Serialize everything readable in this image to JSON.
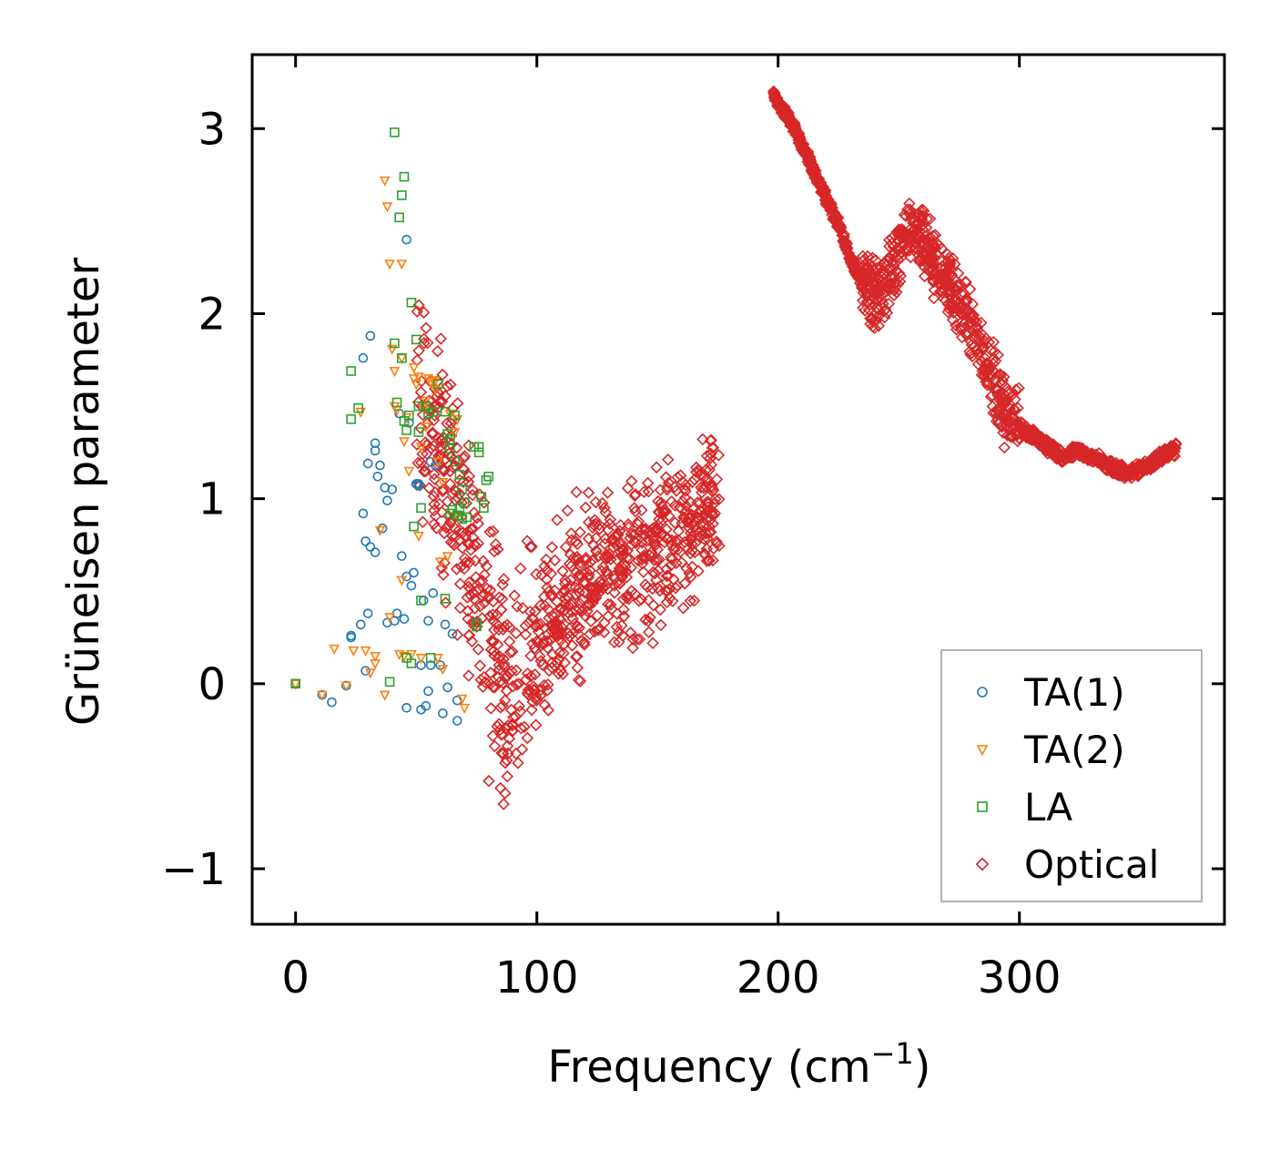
{
  "chart_data": {
    "type": "scatter",
    "title": "",
    "xlabel": "Frequency (cm",
    "xlabel_sup": "−1",
    "xlabel_end": ")",
    "ylabel": "Grüneisen parameter",
    "xlim": [
      -18,
      385
    ],
    "ylim": [
      -1.3,
      3.4
    ],
    "xticks": [
      0,
      100,
      200,
      300
    ],
    "yticks": [
      -1,
      0,
      1,
      2,
      3
    ],
    "xtick_labels": [
      "0",
      "100",
      "200",
      "300"
    ],
    "ytick_labels": [
      "−1",
      "0",
      "1",
      "2",
      "3"
    ],
    "legend_position": "lower-right",
    "series": [
      {
        "name": "TA(1)",
        "marker": "circle",
        "color": "#1f77b4",
        "points": [
          [
            0,
            0
          ],
          [
            11,
            -0.06
          ],
          [
            15,
            -0.1
          ],
          [
            21,
            -0.01
          ],
          [
            23,
            0.25
          ],
          [
            23,
            0.26
          ],
          [
            27,
            0.32
          ],
          [
            28,
            1.76
          ],
          [
            28,
            0.92
          ],
          [
            29,
            0.77
          ],
          [
            29,
            0.07
          ],
          [
            30,
            1.19
          ],
          [
            30,
            0.38
          ],
          [
            31,
            1.88
          ],
          [
            31,
            0.74
          ],
          [
            33,
            1.3
          ],
          [
            33,
            1.26
          ],
          [
            33,
            0.71
          ],
          [
            34,
            1.12
          ],
          [
            35,
            1.18
          ],
          [
            36,
            0.84
          ],
          [
            37,
            1.06
          ],
          [
            38,
            0.99
          ],
          [
            38,
            0.33
          ],
          [
            40,
            1.05
          ],
          [
            41,
            0.34
          ],
          [
            42,
            0.38
          ],
          [
            43,
            1.46
          ],
          [
            44,
            0.69
          ],
          [
            45,
            0.35
          ],
          [
            46,
            2.4
          ],
          [
            46,
            0.58
          ],
          [
            46,
            -0.13
          ],
          [
            47,
            1.41
          ],
          [
            48,
            0.53
          ],
          [
            49,
            0.6
          ],
          [
            50,
            1.08
          ],
          [
            51,
            1.08
          ],
          [
            51,
            1.07
          ],
          [
            52,
            -0.14
          ],
          [
            52,
            0.1
          ],
          [
            53,
            0.45
          ],
          [
            54,
            -0.12
          ],
          [
            55,
            -0.04
          ],
          [
            55,
            0.34
          ],
          [
            56,
            1.2
          ],
          [
            56,
            0.1
          ],
          [
            57,
            0.49
          ],
          [
            58,
            1.18
          ],
          [
            60,
            0.1
          ],
          [
            61,
            -0.16
          ],
          [
            62,
            0.32
          ],
          [
            63,
            -0.02
          ],
          [
            65,
            0.27
          ],
          [
            67,
            -0.2
          ],
          [
            67,
            -0.09
          ]
        ]
      },
      {
        "name": "TA(2)",
        "marker": "triangle-down",
        "color": "#ff7f0e",
        "points": [
          [
            0,
            0
          ],
          [
            11,
            -0.06
          ],
          [
            16,
            0.19
          ],
          [
            21,
            -0.01
          ],
          [
            24,
            0.18
          ],
          [
            27,
            1.47
          ],
          [
            29,
            0.18
          ],
          [
            31,
            0.06
          ],
          [
            33,
            0.15
          ],
          [
            33,
            0.11
          ],
          [
            35,
            0.83
          ],
          [
            37,
            2.72
          ],
          [
            37,
            -0.06
          ],
          [
            38,
            2.58
          ],
          [
            39,
            2.27
          ],
          [
            39,
            0.36
          ],
          [
            40,
            1.81
          ],
          [
            41,
            1.69
          ],
          [
            41,
            1.5
          ],
          [
            42,
            1.48
          ],
          [
            43,
            0.16
          ],
          [
            44,
            2.27
          ],
          [
            44,
            1.76
          ],
          [
            44,
            0.56
          ],
          [
            45,
            1.31
          ],
          [
            45,
            0.15
          ],
          [
            46,
            1.44
          ],
          [
            47,
            1.15
          ],
          [
            48,
            0.16
          ],
          [
            49,
            1.71
          ],
          [
            49,
            1.65
          ],
          [
            50,
            1.62
          ],
          [
            51,
            1.66
          ],
          [
            51,
            0.8
          ],
          [
            52,
            1.28
          ],
          [
            52,
            0.14
          ],
          [
            53,
            1.49
          ],
          [
            54,
            1.53
          ],
          [
            54,
            1.39
          ],
          [
            55,
            1.65
          ],
          [
            56,
            1.63
          ],
          [
            57,
            1.64
          ],
          [
            58,
            1.64
          ],
          [
            58,
            1.59
          ],
          [
            59,
            1.2
          ],
          [
            59,
            0.14
          ],
          [
            60,
            0.66
          ],
          [
            61,
            0.08
          ],
          [
            61,
            1.09
          ],
          [
            63,
            0.69
          ],
          [
            64,
            1.46
          ],
          [
            66,
            1.36
          ],
          [
            67,
            1.43
          ],
          [
            67,
            0.91
          ],
          [
            69,
            -0.08
          ],
          [
            70,
            -0.13
          ]
        ]
      },
      {
        "name": "LA",
        "marker": "square",
        "color": "#2ca02c",
        "points": [
          [
            0,
            0
          ],
          [
            23,
            1.69
          ],
          [
            23,
            1.43
          ],
          [
            26,
            1.49
          ],
          [
            39,
            0.01
          ],
          [
            41,
            2.98
          ],
          [
            41,
            1.84
          ],
          [
            42,
            1.52
          ],
          [
            43,
            2.52
          ],
          [
            44,
            2.64
          ],
          [
            44,
            1.76
          ],
          [
            45,
            2.74
          ],
          [
            45,
            1.42
          ],
          [
            46,
            0.14
          ],
          [
            46,
            1.37
          ],
          [
            47,
            1.45
          ],
          [
            48,
            2.06
          ],
          [
            48,
            0.11
          ],
          [
            49,
            0.85
          ],
          [
            50,
            1.86
          ],
          [
            51,
            1.5
          ],
          [
            51,
            1.36
          ],
          [
            52,
            0.95
          ],
          [
            52,
            0.45
          ],
          [
            54,
            1.5
          ],
          [
            55,
            1.46
          ],
          [
            56,
            0.14
          ],
          [
            57,
            1.47
          ],
          [
            59,
            1.62
          ],
          [
            62,
            1.47
          ],
          [
            62,
            0.46
          ],
          [
            63,
            1.35
          ],
          [
            64,
            1.32
          ],
          [
            64,
            1.27
          ],
          [
            64,
            0.92
          ],
          [
            65,
            0.94
          ],
          [
            66,
            1.2
          ],
          [
            66,
            1.45
          ],
          [
            67,
            0.91
          ],
          [
            68,
            0.95
          ],
          [
            68,
            1.13
          ],
          [
            69,
            1.05
          ],
          [
            69,
            0.89
          ],
          [
            70,
            0.98
          ],
          [
            71,
            0.9
          ],
          [
            74,
            1.28
          ],
          [
            75,
            0.31
          ],
          [
            75,
            0.33
          ],
          [
            76,
            1.25
          ],
          [
            76,
            1.28
          ],
          [
            77,
            1.01
          ],
          [
            78,
            0.95
          ],
          [
            79,
            1.1
          ],
          [
            80,
            1.12
          ]
        ]
      },
      {
        "name": "Optical",
        "marker": "diamond",
        "color": "#d62728",
        "region1": {
          "x_from": 50,
          "x_to": 176
        },
        "region2_points": [
          [
            198,
            3.18
          ],
          [
            205,
            3.05
          ],
          [
            212,
            2.85
          ],
          [
            218,
            2.68
          ],
          [
            225,
            2.48
          ],
          [
            230,
            2.3
          ],
          [
            234,
            2.18
          ],
          [
            240,
            2.1
          ],
          [
            247,
            2.2
          ],
          [
            252,
            2.42
          ],
          [
            258,
            2.4
          ],
          [
            262,
            2.38
          ],
          [
            266,
            2.22
          ],
          [
            271,
            2.15
          ],
          [
            275,
            2.05
          ],
          [
            280,
            1.95
          ],
          [
            285,
            1.8
          ],
          [
            290,
            1.62
          ],
          [
            295,
            1.45
          ],
          [
            303,
            1.36
          ],
          [
            310,
            1.3
          ],
          [
            318,
            1.22
          ],
          [
            324,
            1.26
          ],
          [
            330,
            1.23
          ],
          [
            338,
            1.17
          ],
          [
            345,
            1.14
          ],
          [
            352,
            1.17
          ],
          [
            358,
            1.22
          ],
          [
            365,
            1.27
          ]
        ]
      }
    ]
  }
}
